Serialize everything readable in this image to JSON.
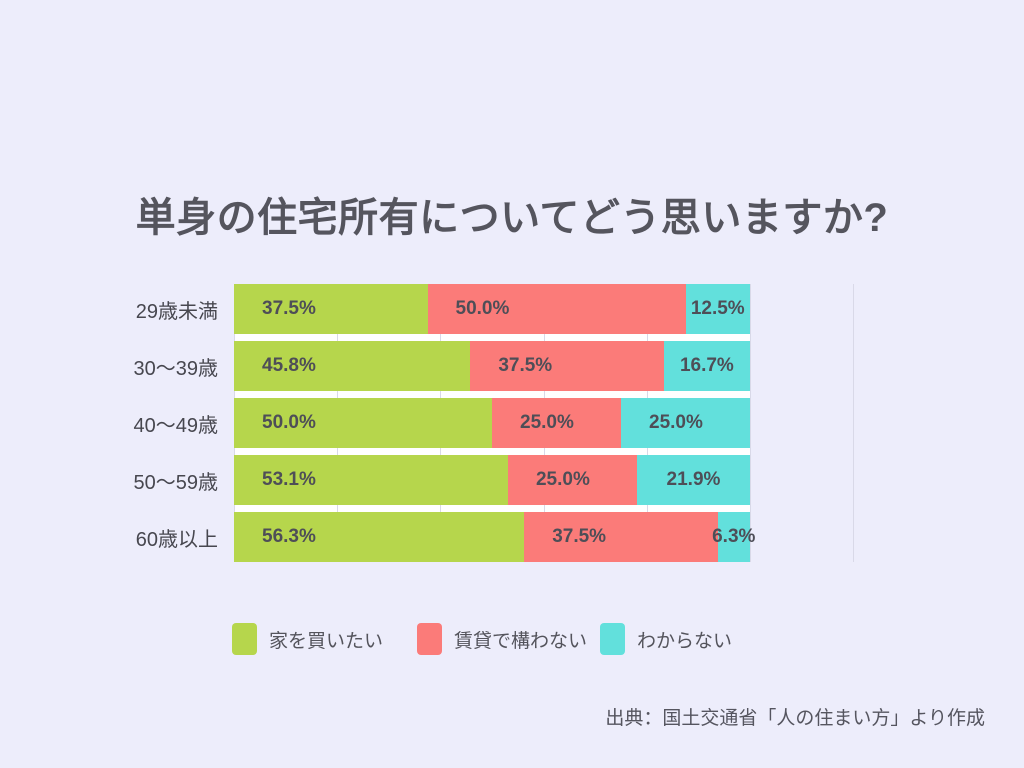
{
  "title": "単身の住宅所有についてどう思いますか?",
  "source": {
    "text": "出典：国土交通省「人の住まい方」より作成"
  },
  "colors": {
    "background": "#EDEDFB",
    "bar_gap": "#FFFFFF",
    "gridline": "#D9D9E8",
    "title_text": "#55555E",
    "value_text": "#4E4E57",
    "category_text": "#47474F"
  },
  "chart_data": {
    "type": "bar",
    "orientation": "horizontal",
    "stacked": true,
    "title": "単身の住宅所有についてどう思いますか?",
    "categories": [
      "29歳未満",
      "30〜39歳",
      "40〜49歳",
      "50〜59歳",
      "60歳以上"
    ],
    "series": [
      {
        "name": "家を買いたい",
        "color": "#B6D64C",
        "values": [
          37.5,
          45.8,
          50.0,
          53.1,
          56.3
        ]
      },
      {
        "name": "賃貸で構わない",
        "color": "#FB7B79",
        "values": [
          50.0,
          37.5,
          25.0,
          25.0,
          37.5
        ]
      },
      {
        "name": "わからない",
        "color": "#62E0DC",
        "values": [
          12.5,
          16.7,
          25.0,
          21.9,
          6.3
        ]
      }
    ],
    "value_labels": [
      [
        "37.5%",
        "50.0%",
        "12.5%"
      ],
      [
        "45.8%",
        "37.5%",
        "16.7%"
      ],
      [
        "50.0%",
        "25.0%",
        "25.0%"
      ],
      [
        "53.1%",
        "25.0%",
        "21.9%"
      ],
      [
        "56.3%",
        "37.5%",
        "6.3%"
      ]
    ],
    "xlim": [
      0,
      120
    ],
    "gridlines_pct": [
      0,
      20,
      40,
      60,
      80,
      100,
      120
    ],
    "xlabel": "",
    "ylabel": "",
    "legend_position": "bottom",
    "grid": true
  }
}
